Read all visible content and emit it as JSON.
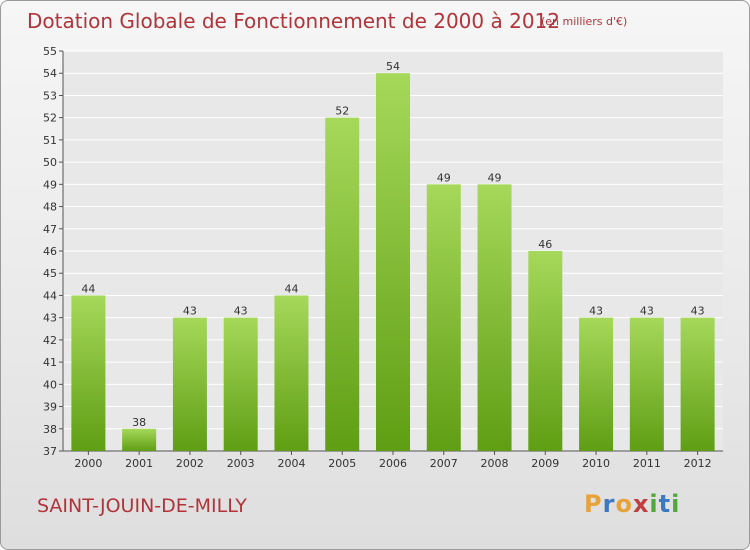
{
  "title": "Dotation Globale de Fonctionnement de 2000 à 2012",
  "subtitle": "(en milliers d'€)",
  "commune": "SAINT-JOUIN-DE-MILLY",
  "logo": {
    "letters": [
      "P",
      "r",
      "o",
      "x",
      "i",
      "t",
      "i"
    ],
    "text": "Proxiti"
  },
  "colors": {
    "title": "#b0343a",
    "bar_light": "#a6d85a",
    "bar_dark": "#5f9e14",
    "grid": "#ffffff",
    "plot_bg": "#e8e8e8"
  },
  "chart_data": {
    "type": "bar",
    "categories": [
      "2000",
      "2001",
      "2002",
      "2003",
      "2004",
      "2005",
      "2006",
      "2007",
      "2008",
      "2009",
      "2010",
      "2011",
      "2012"
    ],
    "values": [
      44,
      38,
      43,
      43,
      44,
      52,
      54,
      49,
      49,
      46,
      43,
      43,
      43
    ],
    "title": "Dotation Globale de Fonctionnement de 2000 à 2012",
    "ylabel": "",
    "xlabel": "",
    "ylim": [
      37,
      55
    ],
    "yticks": [
      37,
      38,
      39,
      40,
      41,
      42,
      43,
      44,
      45,
      46,
      47,
      48,
      49,
      50,
      51,
      52,
      53,
      54,
      55
    ],
    "grid": true
  }
}
